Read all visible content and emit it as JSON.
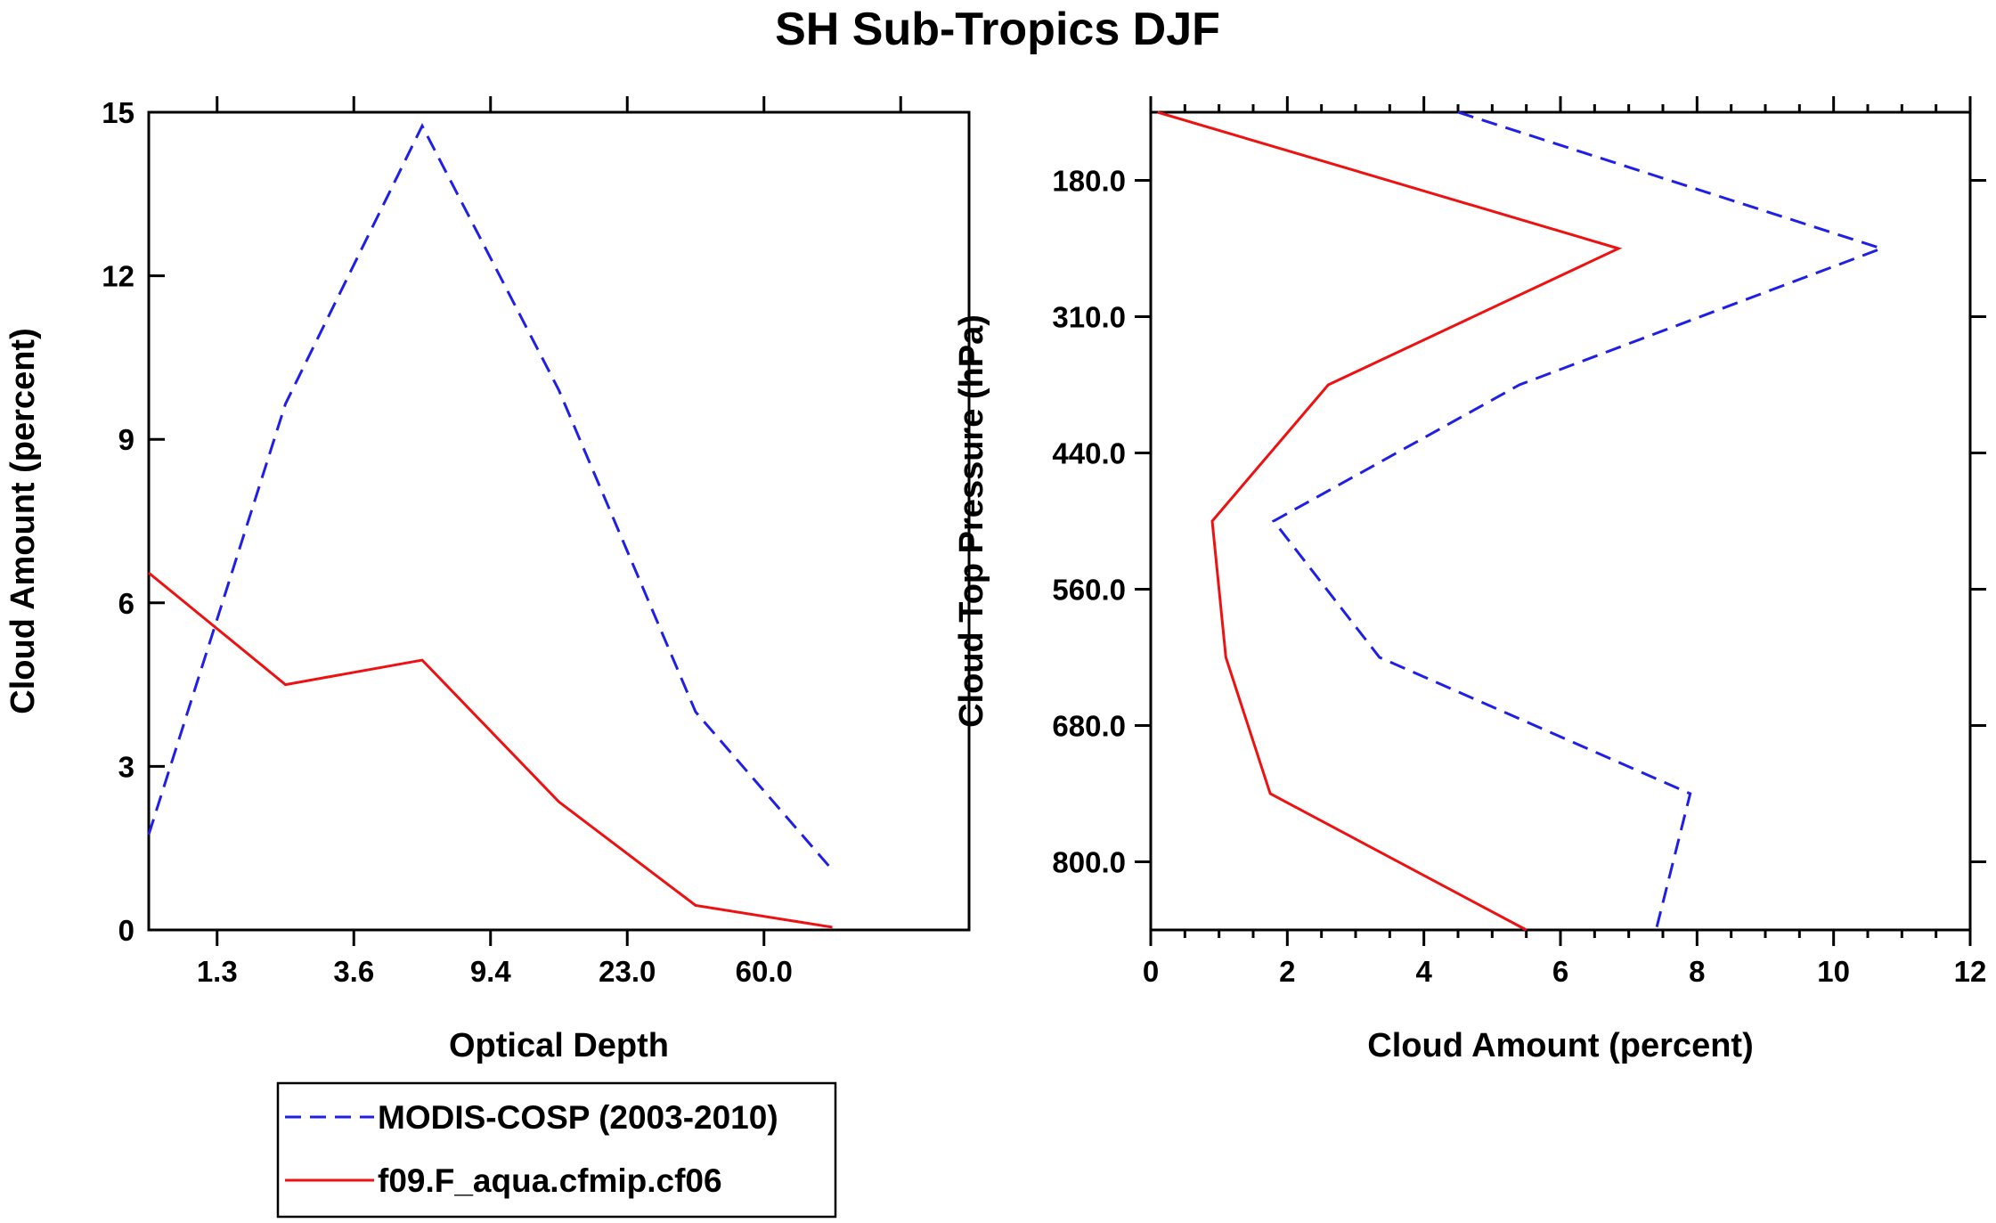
{
  "title": "SH Sub-Tropics DJF",
  "colors": {
    "modis": "#1f1fe6",
    "model": "#ee1111",
    "axes": "#000000"
  },
  "legend": {
    "entries": [
      {
        "label": "MODIS-COSP (2003-2010)",
        "style": "dashed",
        "color": "#1f1fe6"
      },
      {
        "label": "f09.F_aqua.cfmip.cf06",
        "style": "solid",
        "color": "#ee1111"
      }
    ]
  },
  "chart_data": [
    {
      "type": "line",
      "xlabel": "Optical Depth",
      "ylabel": "Cloud Amount (percent)",
      "xlim": [
        0,
        6
      ],
      "ylim": [
        0,
        15
      ],
      "x_ticks": [
        {
          "pos": 0.5,
          "label": "1.3"
        },
        {
          "pos": 1.5,
          "label": "3.6"
        },
        {
          "pos": 2.5,
          "label": "9.4"
        },
        {
          "pos": 3.5,
          "label": "23.0"
        },
        {
          "pos": 4.5,
          "label": "60.0"
        }
      ],
      "top_ticks": [
        0.5,
        1.5,
        2.5,
        3.5,
        4.5,
        5.5
      ],
      "y_ticks": [
        0,
        3,
        6,
        9,
        12,
        15
      ],
      "series": [
        {
          "name": "MODIS-COSP (2003-2010)",
          "style": "dashed",
          "x": [
            0,
            1,
            2,
            3,
            4,
            5
          ],
          "values": [
            1.75,
            9.65,
            14.75,
            9.9,
            4.0,
            1.1
          ]
        },
        {
          "name": "f09.F_aqua.cfmip.cf06",
          "style": "solid",
          "x": [
            0,
            1,
            2,
            3,
            4,
            5
          ],
          "values": [
            6.55,
            4.5,
            4.95,
            2.35,
            0.45,
            0.05
          ]
        }
      ]
    },
    {
      "type": "line",
      "xlabel": "Cloud Amount (percent)",
      "ylabel": "Cloud Top Pressure (hPa)",
      "xlim": [
        0,
        12
      ],
      "ylim": [
        0,
        6
      ],
      "x_ticks": [
        0,
        2,
        4,
        6,
        8,
        10,
        12
      ],
      "y_ticks": [
        {
          "pos": 0.5,
          "label": "180.0"
        },
        {
          "pos": 1.5,
          "label": "310.0"
        },
        {
          "pos": 2.5,
          "label": "440.0"
        },
        {
          "pos": 3.5,
          "label": "560.0"
        },
        {
          "pos": 4.5,
          "label": "680.0"
        },
        {
          "pos": 5.5,
          "label": "800.0"
        }
      ],
      "series": [
        {
          "name": "MODIS-COSP (2003-2010)",
          "style": "dashed",
          "x": [
            4.5,
            10.7,
            5.4,
            1.8,
            3.35,
            7.9,
            7.4
          ],
          "levels": [
            0,
            1,
            2,
            3,
            4,
            5,
            6
          ]
        },
        {
          "name": "f09.F_aqua.cfmip.cf06",
          "style": "solid",
          "x": [
            0.1,
            6.85,
            2.6,
            0.9,
            1.1,
            1.75,
            5.5
          ],
          "levels": [
            0,
            1,
            2,
            3,
            4,
            5,
            6
          ]
        }
      ]
    }
  ]
}
